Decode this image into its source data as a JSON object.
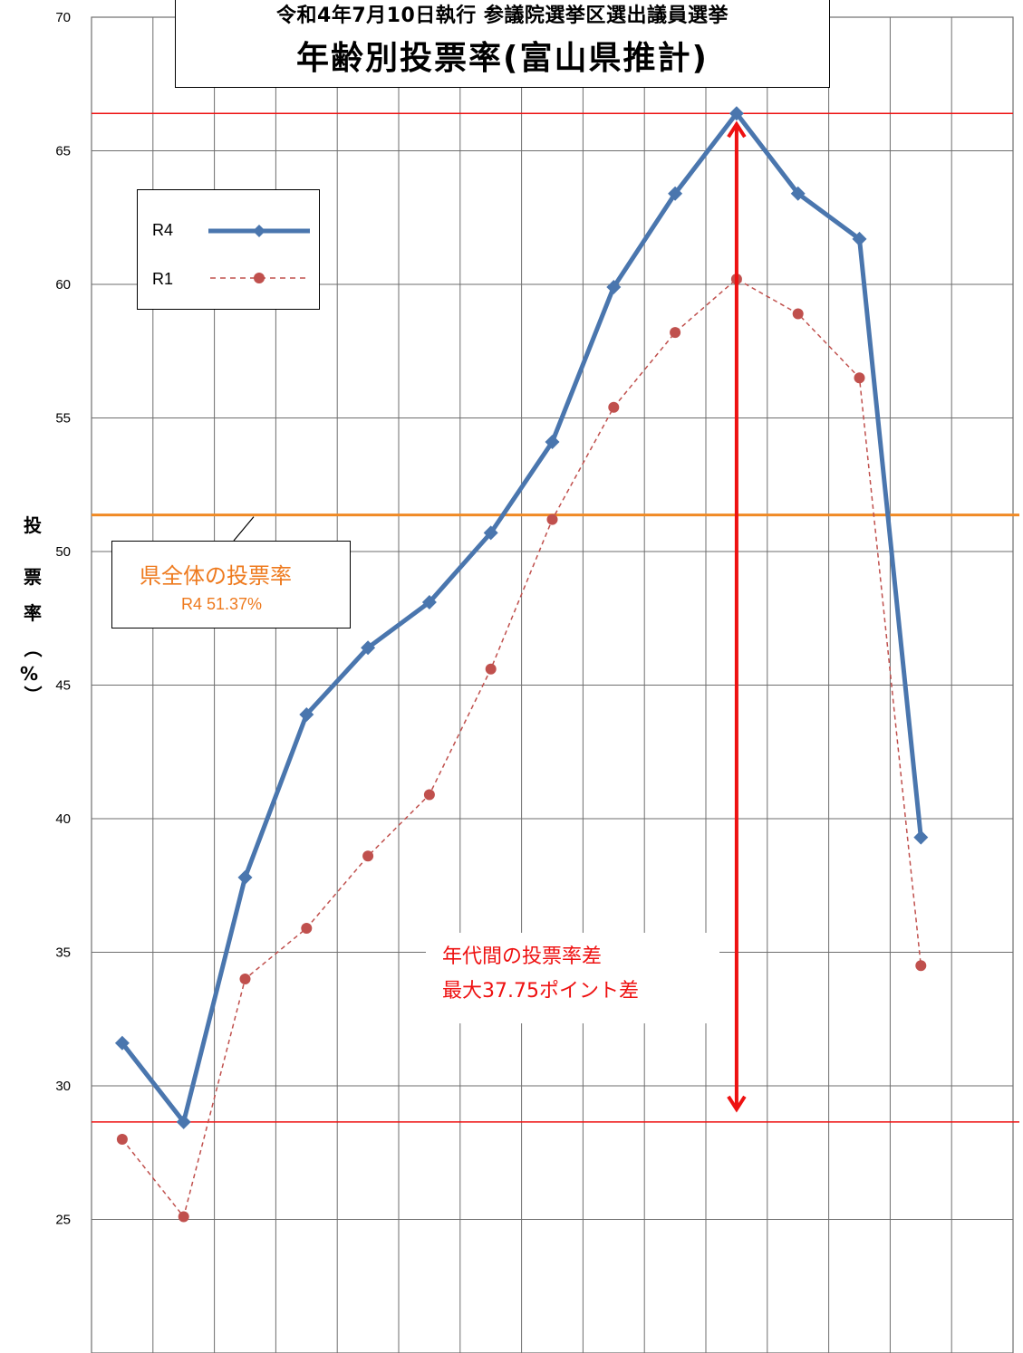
{
  "title": {
    "line1": "令和4年7月10日執行  参議院選挙区選出議員選挙",
    "line2": "年齢別投票率(富山県推計)"
  },
  "y_axis_label_chars": [
    "投",
    "票",
    "率",
    "（",
    "%",
    "）"
  ],
  "legend": {
    "r4": "R4",
    "r1": "R1"
  },
  "turnout_callout": {
    "line1": "県全体の投票率",
    "line2": "R4  51.37%"
  },
  "gap_callout": {
    "line1": "年代間の投票率差",
    "line2": "最大37.75ポイント差"
  },
  "colors": {
    "r4": "#4a76ae",
    "r1": "#c0504d",
    "reference_line": "#ee1111",
    "turnout_line": "#f08a24",
    "gap_arrow": "#ee1111"
  },
  "chart_data": {
    "type": "line",
    "ylim": [
      20,
      70
    ],
    "yticks": [
      25,
      30,
      35,
      40,
      45,
      50,
      55,
      60,
      65,
      70
    ],
    "grid": true,
    "legend_position": "top-left",
    "x": [
      1,
      2,
      3,
      4,
      5,
      6,
      7,
      8,
      9,
      10,
      11,
      12,
      13,
      14
    ],
    "series": [
      {
        "name": "R4",
        "style": "solid",
        "marker": "diamond",
        "values": [
          31.6,
          28.65,
          37.8,
          43.9,
          46.4,
          48.1,
          50.7,
          54.1,
          59.9,
          63.4,
          66.4,
          63.4,
          61.7,
          39.3
        ]
      },
      {
        "name": "R1",
        "style": "dashed",
        "marker": "circle",
        "values": [
          28.0,
          25.1,
          34.0,
          35.9,
          38.6,
          40.9,
          45.6,
          51.2,
          55.4,
          58.2,
          60.2,
          58.9,
          56.5,
          34.5
        ]
      }
    ],
    "reference_lines": {
      "max": 66.4,
      "min": 28.65,
      "prefecture_turnout": 51.37
    }
  }
}
